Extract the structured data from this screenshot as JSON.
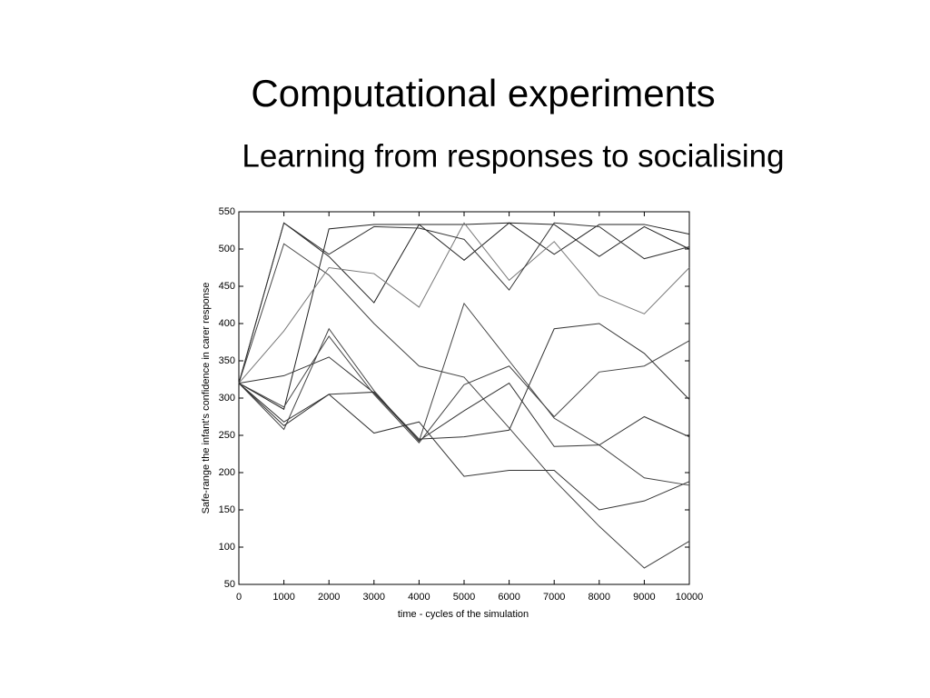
{
  "title": "Computational experiments",
  "subtitle": "Learning from responses to socialising",
  "chart_data": {
    "type": "line",
    "xlabel": "time - cycles of the simulation",
    "ylabel": "Safe-range  the infant's confidence in carer response",
    "x": [
      0,
      1000,
      2000,
      3000,
      4000,
      5000,
      6000,
      7000,
      8000,
      9000,
      10000
    ],
    "series": [
      {
        "color": "#222222",
        "values": [
          320,
          535,
          490,
          428,
          533,
          485,
          535,
          493,
          533,
          533,
          520
        ]
      },
      {
        "color": "#444444",
        "values": [
          320,
          507,
          465,
          400,
          343,
          328,
          260,
          190,
          128,
          72,
          108
        ]
      },
      {
        "color": "#222222",
        "values": [
          320,
          285,
          527,
          533,
          533,
          533,
          535,
          533,
          490,
          530,
          500
        ]
      },
      {
        "color": "#777777",
        "values": [
          320,
          390,
          475,
          467,
          422,
          535,
          458,
          510,
          438,
          413,
          475
        ]
      },
      {
        "color": "#333333",
        "values": [
          320,
          535,
          493,
          530,
          528,
          513,
          445,
          535,
          530,
          487,
          503
        ]
      },
      {
        "color": "#444444",
        "values": [
          320,
          258,
          393,
          310,
          242,
          427,
          350,
          273,
          237,
          193,
          183
        ]
      },
      {
        "color": "#333333",
        "values": [
          320,
          330,
          355,
          307,
          243,
          283,
          320,
          235,
          237,
          275,
          248
        ]
      },
      {
        "color": "#444444",
        "values": [
          320,
          288,
          383,
          305,
          240,
          318,
          343,
          275,
          335,
          343,
          377
        ]
      },
      {
        "color": "#333333",
        "values": [
          320,
          268,
          305,
          308,
          245,
          248,
          257,
          393,
          400,
          360,
          298
        ]
      },
      {
        "color": "#333333",
        "values": [
          320,
          263,
          305,
          253,
          268,
          195,
          203,
          203,
          150,
          162,
          188
        ]
      }
    ],
    "xlim": [
      0,
      10000
    ],
    "xticks": [
      0,
      1000,
      2000,
      3000,
      4000,
      5000,
      6000,
      7000,
      8000,
      9000,
      10000
    ],
    "ylim": [
      50,
      550
    ],
    "yticks": [
      50,
      100,
      150,
      200,
      250,
      300,
      350,
      400,
      450,
      500,
      550
    ]
  }
}
